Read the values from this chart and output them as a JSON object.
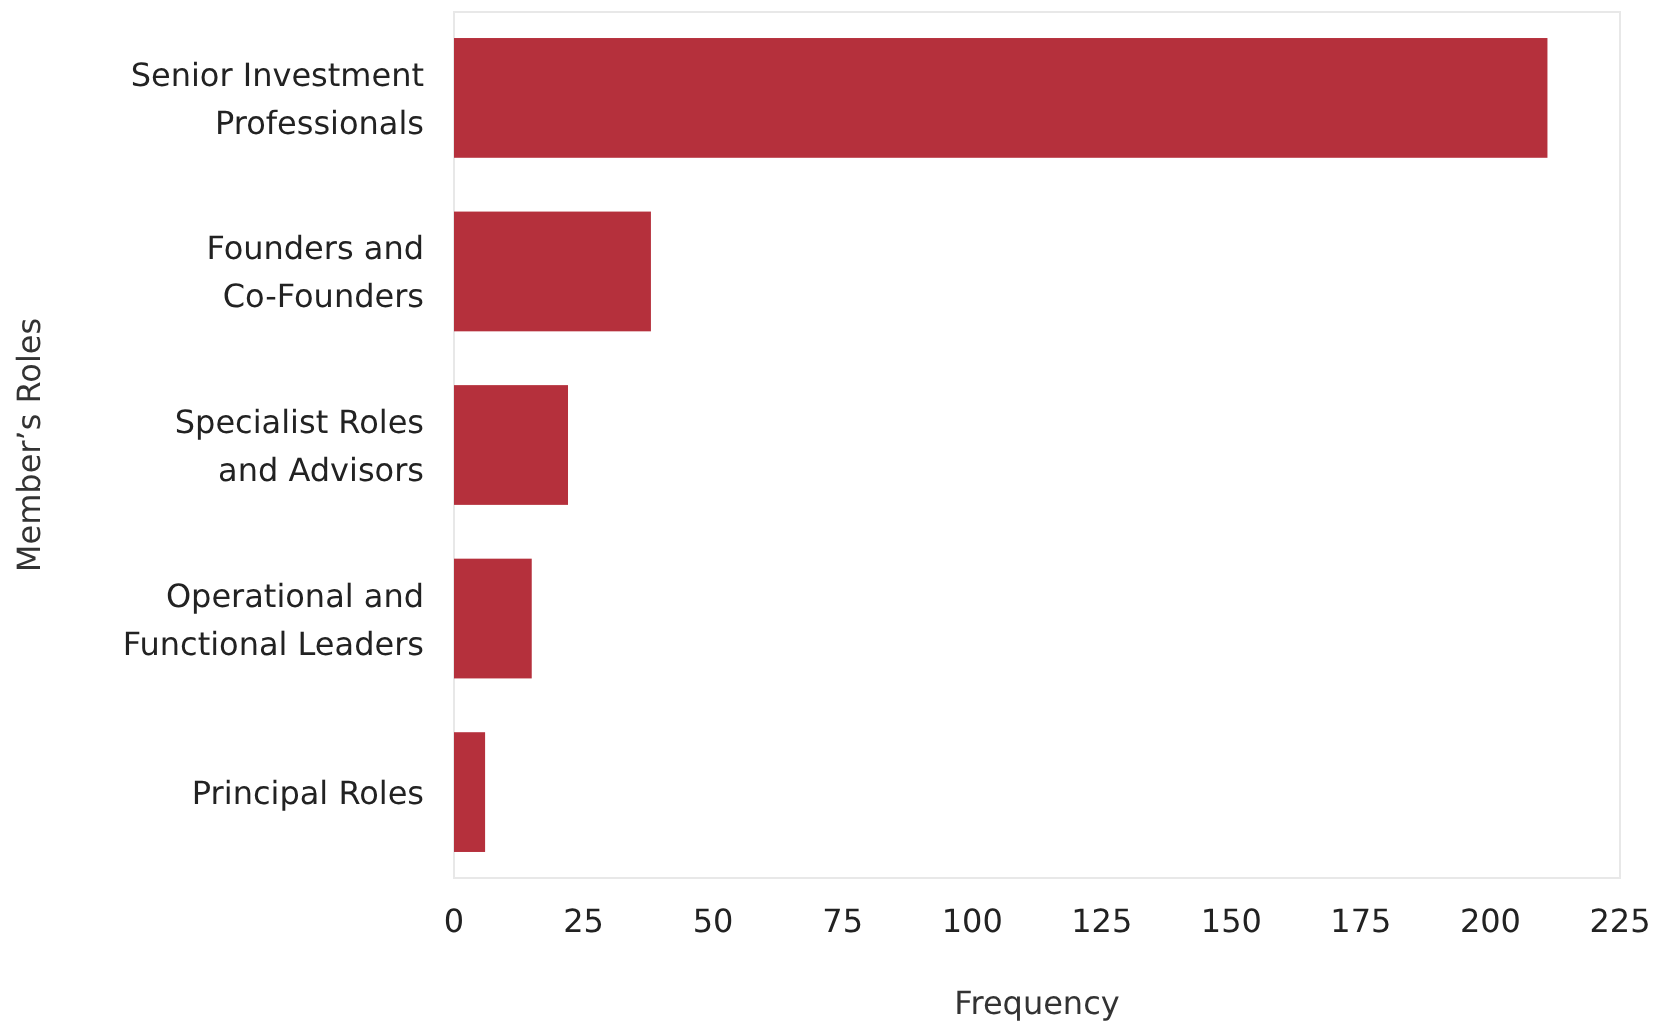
{
  "chart_data": {
    "type": "bar",
    "orientation": "horizontal",
    "xlabel": "Frequency",
    "ylabel": "Member’s Roles",
    "categories": [
      "Senior Investment\nProfessionals",
      "Founders and\nCo-Founders",
      "Specialist Roles\nand Advisors",
      "Operational and\nFunctional Leaders",
      "Principal Roles"
    ],
    "values": [
      211,
      38,
      22,
      15,
      6
    ],
    "color": "#b5303c",
    "xlim": [
      0,
      225
    ],
    "xticks": [
      0,
      25,
      50,
      75,
      100,
      125,
      150,
      175,
      200,
      225
    ],
    "grid": false
  }
}
